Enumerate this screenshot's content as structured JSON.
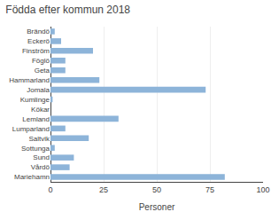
{
  "chart_data": {
    "type": "bar",
    "orientation": "horizontal",
    "title": "Födda efter kommun 2018",
    "categories": [
      "Brändö",
      "Eckerö",
      "Finström",
      "Föglö",
      "Geta",
      "Hammarland",
      "Jomala",
      "Kumlinge",
      "Kökar",
      "Lemland",
      "Lumparland",
      "Saltvik",
      "Sottunga",
      "Sund",
      "Vårdö",
      "Mariehamn"
    ],
    "values": [
      2,
      5,
      20,
      7,
      7,
      23,
      73,
      1,
      0,
      32,
      7,
      18,
      2,
      11,
      9,
      82
    ],
    "color": "#8db4d9",
    "xlabel": "Personer",
    "xlim": [
      0,
      100
    ],
    "xticks": [
      0,
      25,
      50,
      75,
      100
    ],
    "grid": true
  }
}
